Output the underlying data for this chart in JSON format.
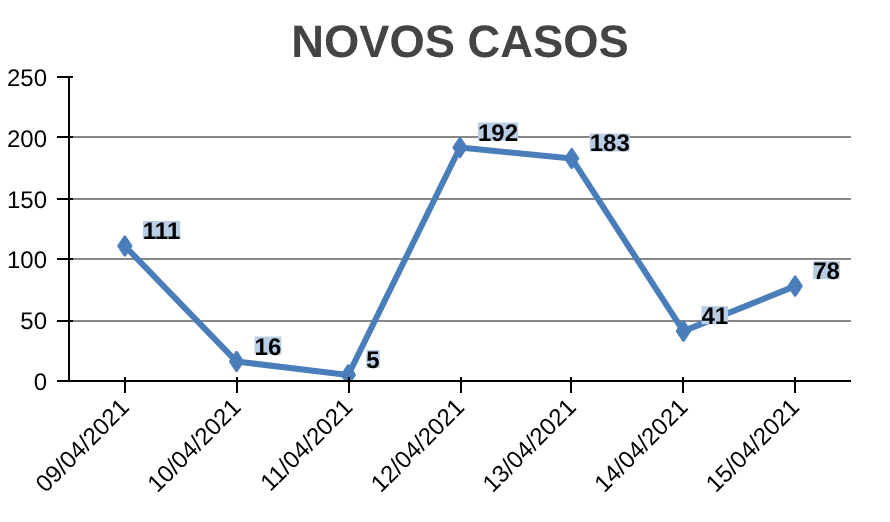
{
  "chart_data": {
    "type": "line",
    "title": "NOVOS CASOS",
    "categories": [
      "09/04/2021",
      "10/04/2021",
      "11/04/2021",
      "12/04/2021",
      "13/04/2021",
      "14/04/2021",
      "15/04/2021"
    ],
    "series": [
      {
        "color": "#4a7ebb",
        "values": [
          111,
          16,
          5,
          192,
          183,
          41,
          78
        ]
      }
    ],
    "ylim": [
      0,
      250
    ],
    "yticks": [
      0,
      50,
      100,
      150,
      200,
      250
    ],
    "grid": "y",
    "marker": "diamond",
    "line_style": "solid",
    "data_labels": true
  }
}
